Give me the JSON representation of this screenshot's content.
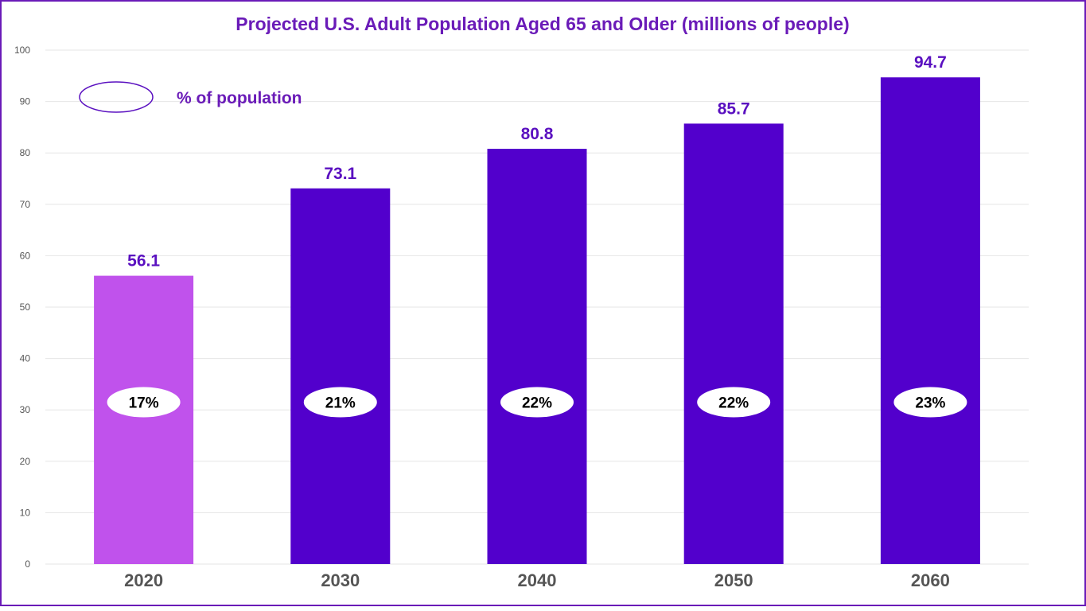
{
  "chart_data": {
    "type": "bar",
    "title": "Projected U.S. Adult Population Aged 65 and Older (millions of people)",
    "xlabel": "",
    "ylabel": "",
    "categories": [
      "2020",
      "2030",
      "2040",
      "2050",
      "2060"
    ],
    "values": [
      56.1,
      73.1,
      80.8,
      85.7,
      94.7
    ],
    "value_labels": [
      "56.1",
      "73.1",
      "80.8",
      "85.7",
      "94.7"
    ],
    "percent_labels": [
      "17%",
      "21%",
      "22%",
      "22%",
      "23%"
    ],
    "percent_position_value": 31.5,
    "ylim": [
      0,
      100
    ],
    "yticks": [
      0,
      10,
      20,
      30,
      40,
      50,
      60,
      70,
      80,
      90,
      100
    ],
    "grid": true,
    "legend": {
      "label": "% of population",
      "position": "top-left"
    },
    "colors": {
      "bar_highlight": "#c052ec",
      "bar_default": "#5200cc",
      "title": "#6a1bb8",
      "value_label": "#5a10c0",
      "legend_text": "#6a1bb8",
      "legend_marker_stroke": "#5a10c0",
      "category_label": "#555555",
      "tick_label": "#555555",
      "grid": "#e6e6e6",
      "pill_fill": "#ffffff",
      "pill_text": "#000000"
    },
    "highlight_index": 0
  }
}
